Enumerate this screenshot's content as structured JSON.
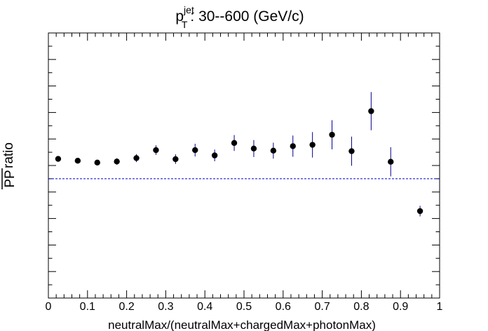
{
  "chart_data": {
    "type": "scatter",
    "title_main": "p",
    "title_sup": "jet",
    "title_sub": "T",
    "title_rest": ":  30--600 (GeV/c)",
    "xlabel": "neutralMax/(neutralMax+chargedMax+photonMax)",
    "ylabel_denominator": "PP",
    "ylabel_rest": " ratio",
    "xlim": [
      0,
      1
    ],
    "ylim": [
      0.55,
      1.55
    ],
    "xticks": [
      "0",
      "0.1",
      "0.2",
      "0.3",
      "0.4",
      "0.5",
      "0.6",
      "0.7",
      "0.8",
      "0.9",
      "1"
    ],
    "yticks_visible": false,
    "grid": false,
    "reference_line": 1.0,
    "marker_color": "#000000",
    "errorbar_color": "#00008b",
    "reference_color": "#0000cc",
    "series": [
      {
        "x": [
          0.025,
          0.075,
          0.125,
          0.175,
          0.225,
          0.275,
          0.325,
          0.375,
          0.425,
          0.475,
          0.525,
          0.575,
          0.625,
          0.675,
          0.725,
          0.775,
          0.825,
          0.875,
          0.95
        ],
        "y": [
          1.075,
          1.068,
          1.061,
          1.065,
          1.078,
          1.108,
          1.074,
          1.108,
          1.088,
          1.135,
          1.114,
          1.106,
          1.123,
          1.128,
          1.166,
          1.104,
          1.255,
          1.064,
          0.878
        ],
        "yerr": [
          0.01,
          0.01,
          0.01,
          0.012,
          0.015,
          0.018,
          0.018,
          0.024,
          0.022,
          0.03,
          0.032,
          0.03,
          0.04,
          0.048,
          0.055,
          0.055,
          0.072,
          0.055,
          0.02
        ]
      }
    ]
  }
}
